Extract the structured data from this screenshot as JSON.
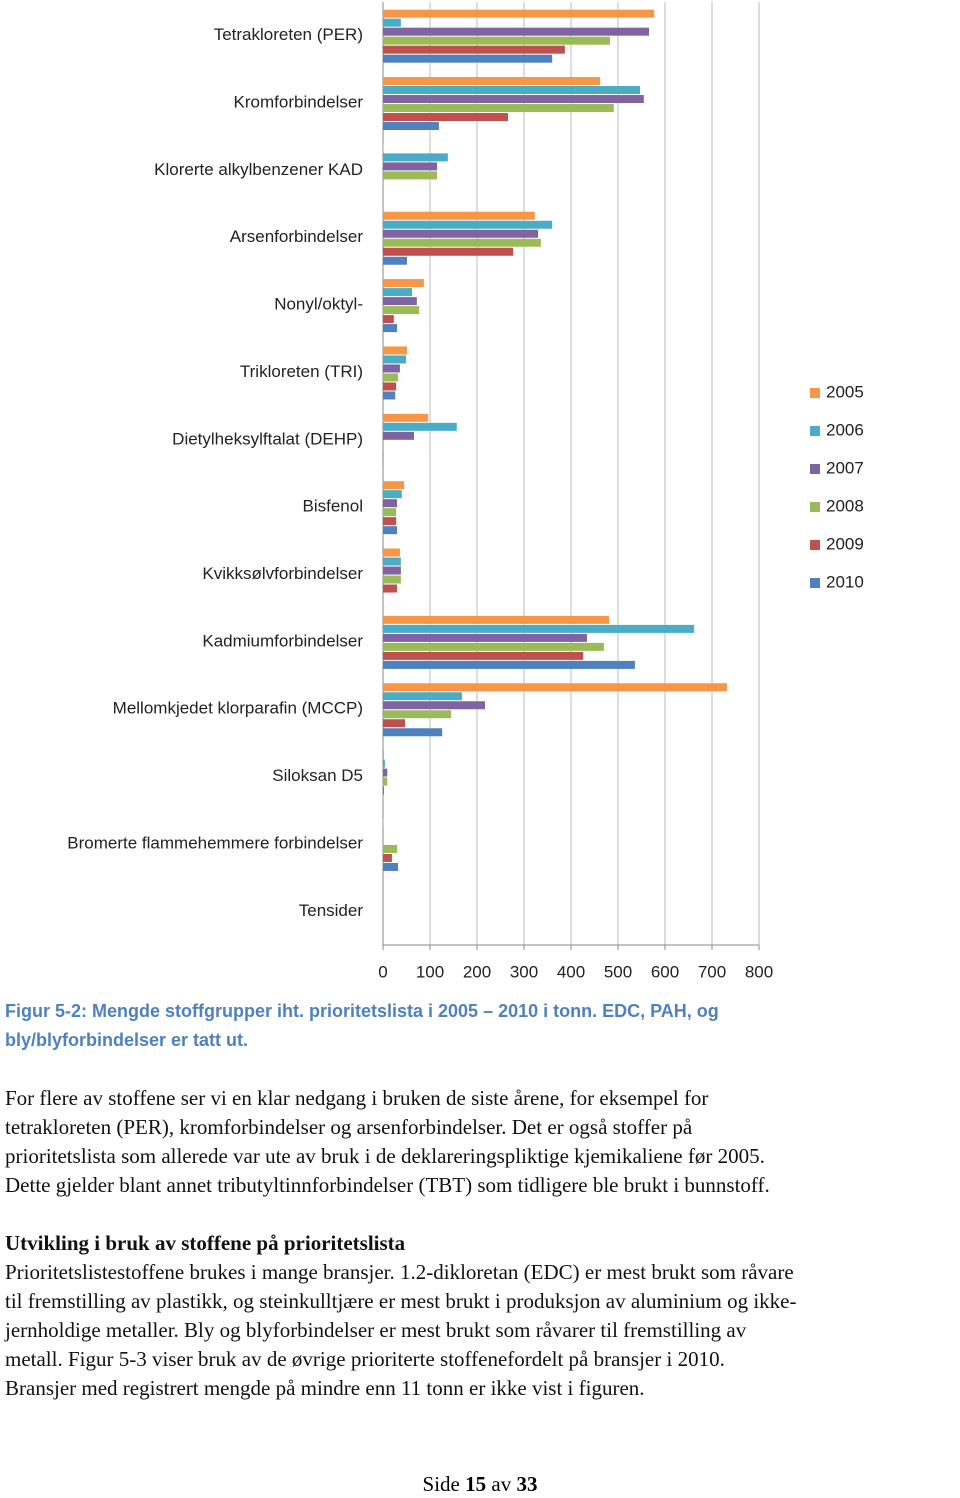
{
  "chart_data": {
    "type": "hbar",
    "categories": [
      "Tetrakloreten (PER)",
      "Kromforbindelser",
      "Klorerte alkylbenzener KAD",
      "Arsenforbindelser",
      "Nonyl/oktyl-",
      "Trikloreten (TRI)",
      "Dietylheksylftalat (DEHP)",
      "Bisfenol",
      "Kvikksølvforbindelser",
      "Kadmiumforbindelser",
      "Mellomkjedet klorparafin (MCCP)",
      "Siloksan D5",
      "Bromerte flammehemmere forbindelser",
      "Tensider"
    ],
    "series": [
      {
        "name": "2005",
        "color": "#f79646",
        "values": [
          577,
          462,
          1,
          323,
          87,
          51,
          96,
          45,
          36,
          481,
          732,
          2,
          1,
          0
        ]
      },
      {
        "name": "2006",
        "color": "#4bacc6",
        "values": [
          38,
          547,
          138,
          360,
          62,
          49,
          157,
          40,
          38,
          662,
          168,
          4,
          0,
          0
        ]
      },
      {
        "name": "2007",
        "color": "#8064a2",
        "values": [
          566,
          555,
          115,
          330,
          72,
          36,
          66,
          30,
          38,
          434,
          217,
          9,
          0,
          0
        ]
      },
      {
        "name": "2008",
        "color": "#9bbb59",
        "values": [
          483,
          491,
          115,
          336,
          77,
          32,
          0,
          28,
          38,
          470,
          145,
          9,
          30,
          0
        ]
      },
      {
        "name": "2009",
        "color": "#c0504d",
        "values": [
          387,
          266,
          0,
          277,
          23,
          28,
          1,
          28,
          30,
          426,
          47,
          2,
          19,
          0
        ]
      },
      {
        "name": "2010",
        "color": "#4f81bd",
        "values": [
          360,
          119,
          0,
          51,
          30,
          26,
          1,
          30,
          0,
          536,
          126,
          0,
          32,
          0
        ]
      }
    ],
    "xlim": [
      0,
      800
    ],
    "xticks": [
      0,
      100,
      200,
      300,
      400,
      500,
      600,
      700,
      800
    ],
    "grid": true,
    "legend": "right"
  },
  "caption": [
    "Figur 5-2: Mengde stoffgrupper iht. prioritetslista i 2005 – 2010 i tonn. EDC, PAH, og",
    "bly/blyforbindelser er tatt ut."
  ],
  "paragraph1": [
    "For flere av stoffene ser vi en klar nedgang i bruken de siste årene, for eksempel for",
    "tetrakloreten (PER), kromforbindelser og arsenforbindelser. Det er også stoffer på",
    "prioritetslista som allerede var ute av bruk i de deklareringspliktige kjemikaliene før 2005.",
    "Dette gjelder blant annet tributyltinnforbindelser (TBT) som tidligere ble brukt i bunnstoff."
  ],
  "heading": "Utvikling i bruk av stoffene på prioritetslista",
  "paragraph2": [
    "Prioritetslistestoffene brukes i mange bransjer. 1.2-dikloretan (EDC) er mest brukt som råvare",
    "til fremstilling av plastikk, og steinkulltjære er mest brukt i produksjon av aluminium og ikke-",
    "jernholdige metaller. Bly og blyforbindelser er mest brukt som råvarer til fremstilling av",
    "metall. Figur 5-3 viser bruk av de øvrige prioriterte stoffenefordelt på bransjer i 2010.",
    "Bransjer med registrert mengde på mindre enn 11 tonn er ikke vist i figuren."
  ],
  "footer": {
    "prefix": "Side",
    "page": "15",
    "middle": "av",
    "total": "33"
  }
}
